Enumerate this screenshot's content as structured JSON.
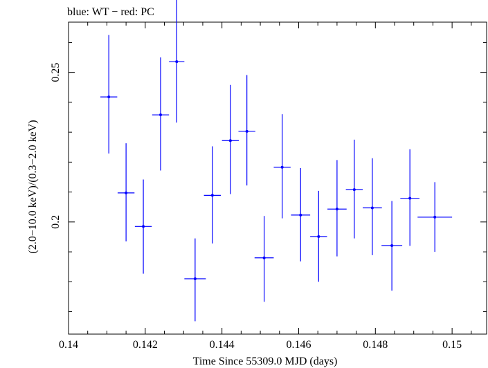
{
  "chart_data": {
    "type": "scatter",
    "title": "blue: WT − red: PC",
    "xlabel": "Time Since 55309.0 MJD (days)",
    "ylabel": "(2.0−10.0 keV)/(0.3−2.0 keV)",
    "xlim": [
      0.14,
      0.1509
    ],
    "ylim": [
      0.1625,
      0.2668
    ],
    "x_ticks": [
      0.14,
      0.142,
      0.144,
      0.146,
      0.148,
      0.15
    ],
    "x_tick_labels": [
      "0.14",
      "0.142",
      "0.144",
      "0.146",
      "0.148",
      "0.15"
    ],
    "y_ticks": [
      0.2,
      0.25
    ],
    "y_tick_labels": [
      "0.2",
      "0.25"
    ],
    "grid": false,
    "colors": {
      "WT": "#0000ff",
      "axes": "#000000"
    },
    "series": [
      {
        "name": "WT",
        "points": [
          {
            "x": 0.14105,
            "y": 0.2418,
            "xerr": 0.00022,
            "ylo": 0.2229,
            "yhi": 0.2625
          },
          {
            "x": 0.1415,
            "y": 0.2097,
            "xerr": 0.00022,
            "ylo": 0.1935,
            "yhi": 0.2263
          },
          {
            "x": 0.14195,
            "y": 0.1985,
            "xerr": 0.00022,
            "ylo": 0.1827,
            "yhi": 0.2142
          },
          {
            "x": 0.1424,
            "y": 0.2358,
            "xerr": 0.00022,
            "ylo": 0.2172,
            "yhi": 0.255
          },
          {
            "x": 0.14282,
            "y": 0.2536,
            "xerr": 0.0002,
            "ylo": 0.2332,
            "yhi": 0.2746
          },
          {
            "x": 0.1433,
            "y": 0.181,
            "xerr": 0.00028,
            "ylo": 0.1668,
            "yhi": 0.1945
          },
          {
            "x": 0.14375,
            "y": 0.2089,
            "xerr": 0.00022,
            "ylo": 0.1928,
            "yhi": 0.2253
          },
          {
            "x": 0.14422,
            "y": 0.2272,
            "xerr": 0.00022,
            "ylo": 0.2093,
            "yhi": 0.2458
          },
          {
            "x": 0.14465,
            "y": 0.2303,
            "xerr": 0.00022,
            "ylo": 0.2122,
            "yhi": 0.2491
          },
          {
            "x": 0.1451,
            "y": 0.188,
            "xerr": 0.00025,
            "ylo": 0.1733,
            "yhi": 0.202
          },
          {
            "x": 0.14557,
            "y": 0.2183,
            "xerr": 0.00022,
            "ylo": 0.2012,
            "yhi": 0.236
          },
          {
            "x": 0.14605,
            "y": 0.2023,
            "xerr": 0.00025,
            "ylo": 0.1868,
            "yhi": 0.218
          },
          {
            "x": 0.14652,
            "y": 0.1951,
            "xerr": 0.00022,
            "ylo": 0.18,
            "yhi": 0.2104
          },
          {
            "x": 0.147,
            "y": 0.2043,
            "xerr": 0.00025,
            "ylo": 0.1885,
            "yhi": 0.2207
          },
          {
            "x": 0.14745,
            "y": 0.2108,
            "xerr": 0.00022,
            "ylo": 0.1945,
            "yhi": 0.2275
          },
          {
            "x": 0.14792,
            "y": 0.2047,
            "xerr": 0.00025,
            "ylo": 0.1889,
            "yhi": 0.2213
          },
          {
            "x": 0.14843,
            "y": 0.1921,
            "xerr": 0.00027,
            "ylo": 0.177,
            "yhi": 0.207
          },
          {
            "x": 0.1489,
            "y": 0.2079,
            "xerr": 0.00025,
            "ylo": 0.192,
            "yhi": 0.2243
          },
          {
            "x": 0.14955,
            "y": 0.2016,
            "xerr": 0.00045,
            "ylo": 0.19,
            "yhi": 0.2133
          }
        ]
      }
    ]
  }
}
